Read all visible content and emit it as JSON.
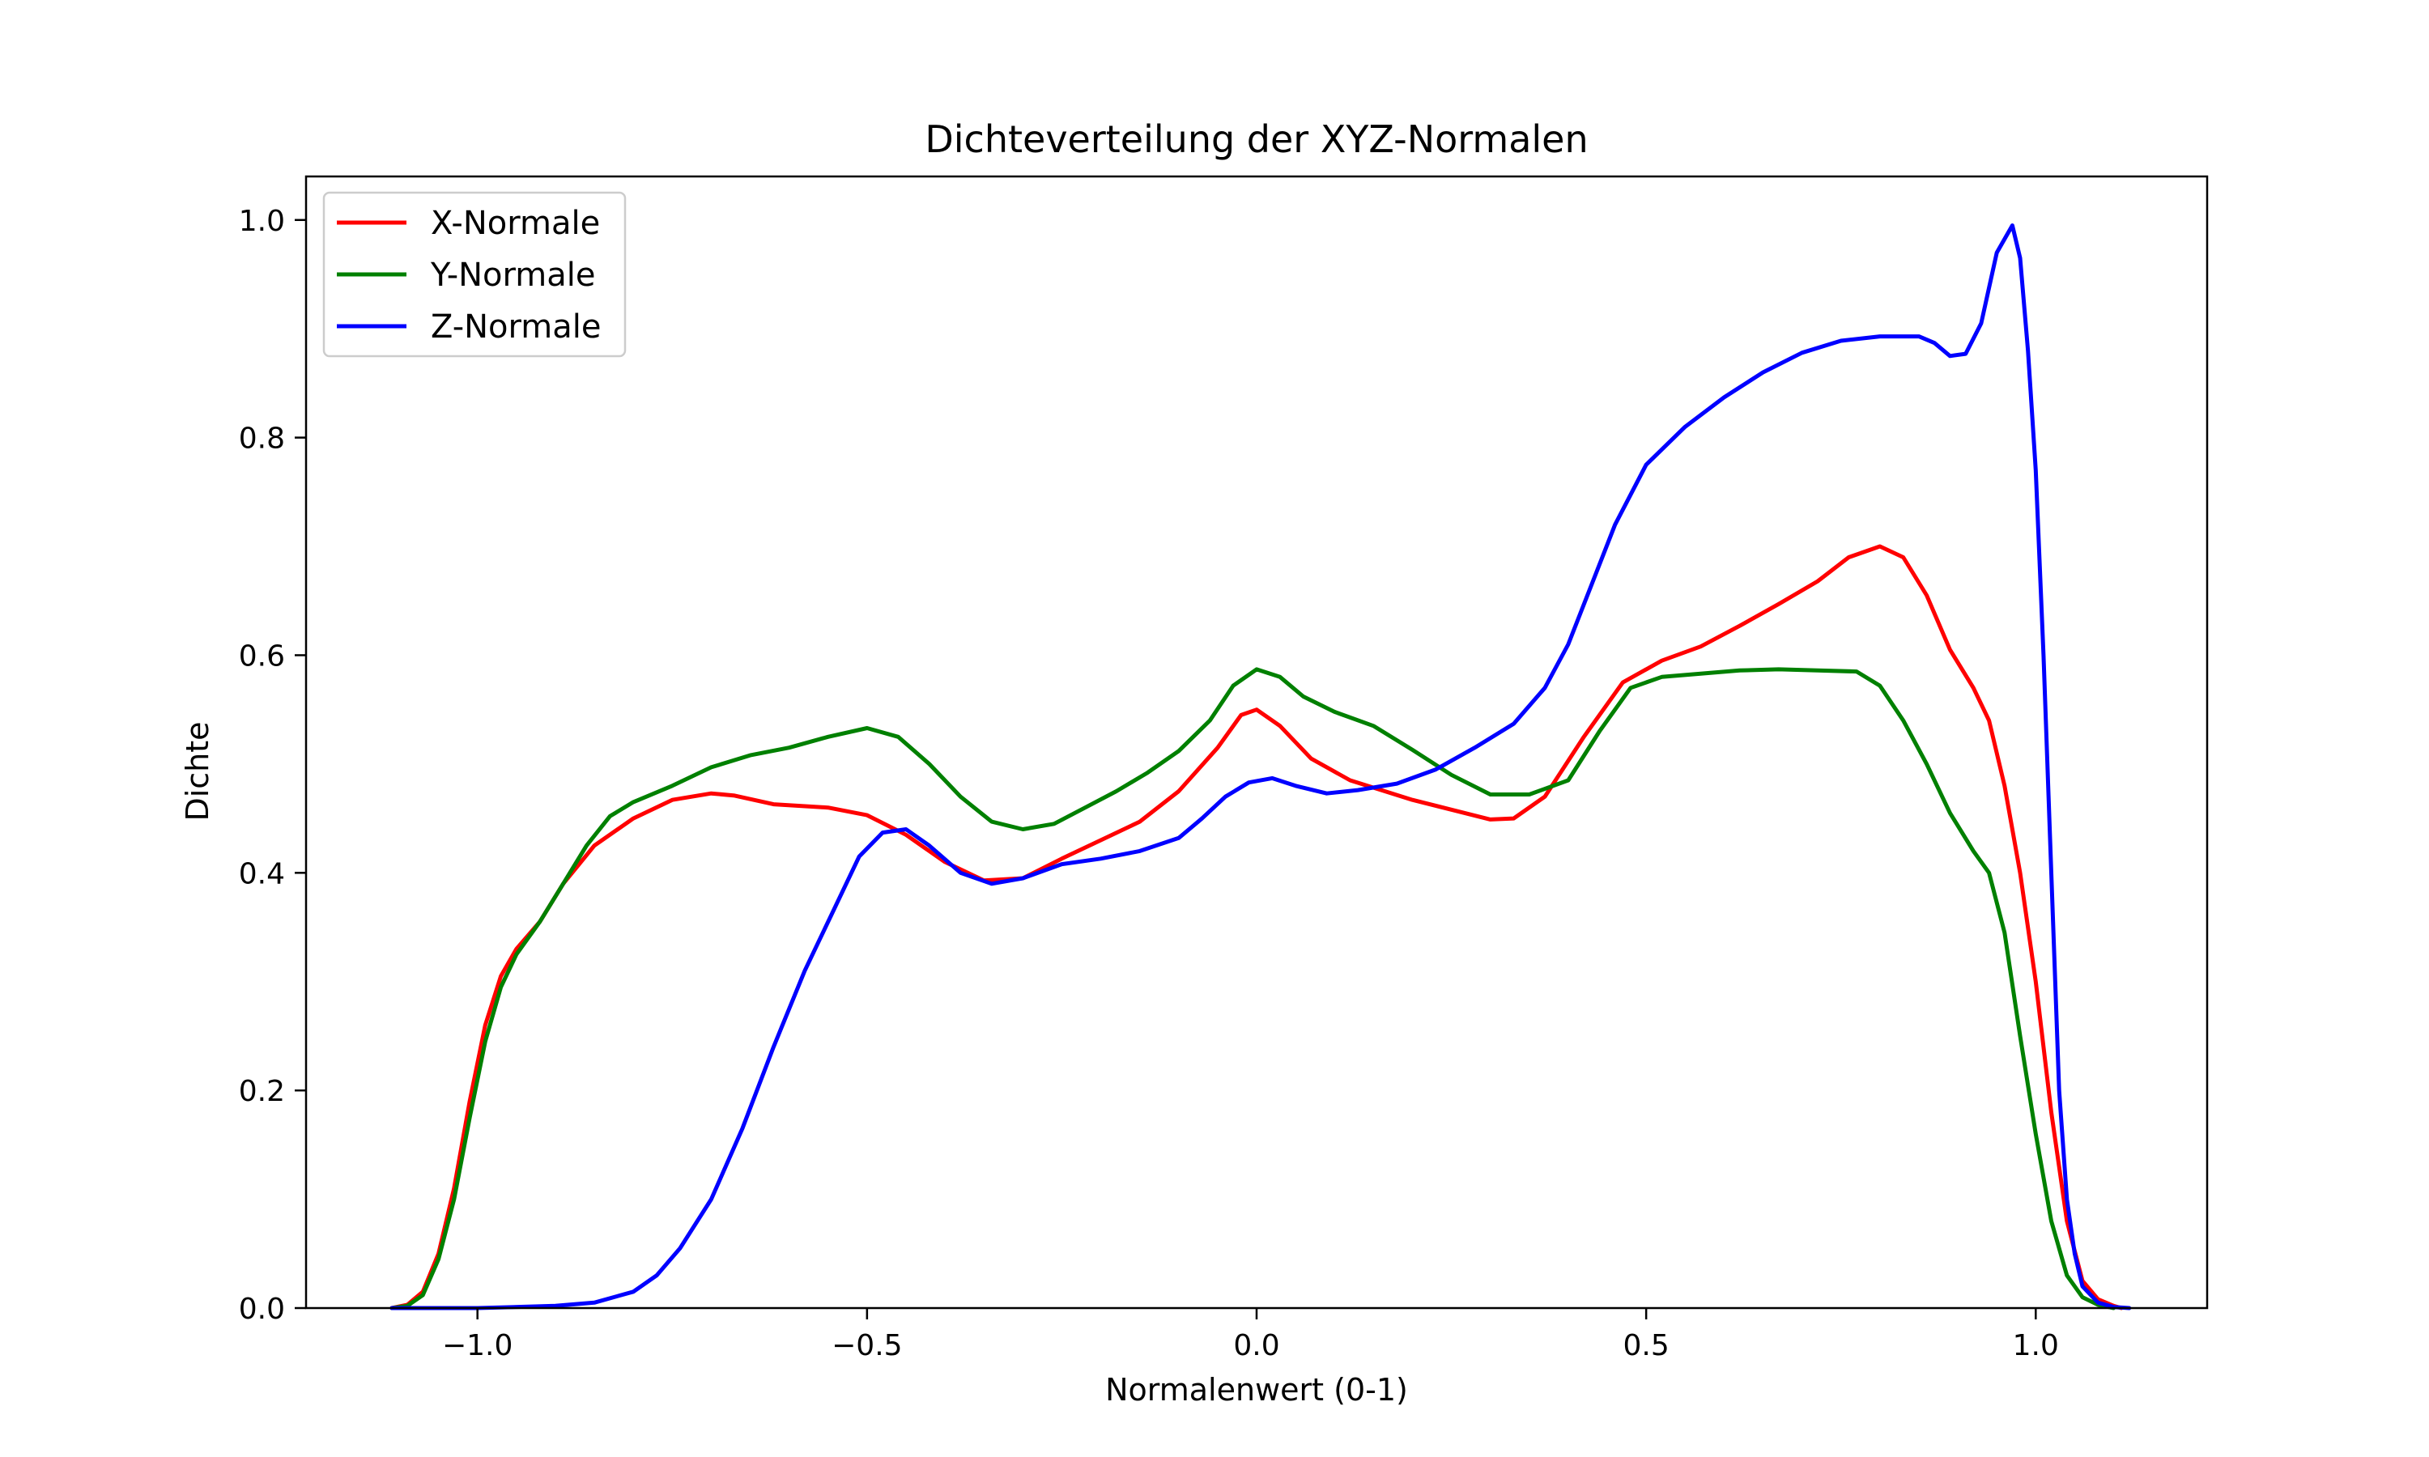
{
  "chart_data": {
    "type": "line",
    "title": "Dichteverteilung der XYZ-Normalen",
    "xlabel": "Normalenwert (0-1)",
    "ylabel": "Dichte",
    "xlim": [
      -1.22,
      1.22
    ],
    "ylim": [
      0,
      1.04
    ],
    "xticks": [
      -1.0,
      -0.5,
      0.0,
      0.5,
      1.0
    ],
    "xtick_labels": [
      "−1.0",
      "−0.5",
      "0.0",
      "0.5",
      "1.0"
    ],
    "yticks": [
      0.0,
      0.2,
      0.4,
      0.6,
      0.8,
      1.0
    ],
    "ytick_labels": [
      "0.0",
      "0.2",
      "0.4",
      "0.6",
      "0.8",
      "1.0"
    ],
    "grid": false,
    "legend_position": "top-left",
    "series": [
      {
        "name": "X-Normale",
        "color": "#ff0000",
        "points": [
          [
            -1.11,
            0.0
          ],
          [
            -1.09,
            0.003
          ],
          [
            -1.07,
            0.015
          ],
          [
            -1.05,
            0.05
          ],
          [
            -1.03,
            0.11
          ],
          [
            -1.01,
            0.19
          ],
          [
            -0.99,
            0.26
          ],
          [
            -0.97,
            0.305
          ],
          [
            -0.95,
            0.33
          ],
          [
            -0.92,
            0.355
          ],
          [
            -0.89,
            0.39
          ],
          [
            -0.85,
            0.425
          ],
          [
            -0.8,
            0.45
          ],
          [
            -0.75,
            0.467
          ],
          [
            -0.7,
            0.473
          ],
          [
            -0.67,
            0.471
          ],
          [
            -0.62,
            0.463
          ],
          [
            -0.55,
            0.46
          ],
          [
            -0.5,
            0.453
          ],
          [
            -0.45,
            0.435
          ],
          [
            -0.4,
            0.41
          ],
          [
            -0.35,
            0.393
          ],
          [
            -0.3,
            0.395
          ],
          [
            -0.25,
            0.413
          ],
          [
            -0.2,
            0.43
          ],
          [
            -0.15,
            0.447
          ],
          [
            -0.1,
            0.475
          ],
          [
            -0.05,
            0.515
          ],
          [
            -0.02,
            0.545
          ],
          [
            0.0,
            0.55
          ],
          [
            0.03,
            0.535
          ],
          [
            0.07,
            0.505
          ],
          [
            0.12,
            0.485
          ],
          [
            0.2,
            0.467
          ],
          [
            0.25,
            0.458
          ],
          [
            0.3,
            0.449
          ],
          [
            0.33,
            0.45
          ],
          [
            0.37,
            0.47
          ],
          [
            0.42,
            0.525
          ],
          [
            0.47,
            0.575
          ],
          [
            0.52,
            0.595
          ],
          [
            0.57,
            0.608
          ],
          [
            0.62,
            0.627
          ],
          [
            0.67,
            0.647
          ],
          [
            0.72,
            0.668
          ],
          [
            0.76,
            0.69
          ],
          [
            0.8,
            0.7
          ],
          [
            0.83,
            0.69
          ],
          [
            0.86,
            0.655
          ],
          [
            0.89,
            0.605
          ],
          [
            0.92,
            0.57
          ],
          [
            0.94,
            0.54
          ],
          [
            0.96,
            0.48
          ],
          [
            0.98,
            0.4
          ],
          [
            1.0,
            0.3
          ],
          [
            1.02,
            0.18
          ],
          [
            1.04,
            0.08
          ],
          [
            1.06,
            0.025
          ],
          [
            1.08,
            0.008
          ],
          [
            1.1,
            0.002
          ],
          [
            1.11,
            0.0
          ]
        ]
      },
      {
        "name": "Y-Normale",
        "color": "#008000",
        "points": [
          [
            -1.11,
            0.0
          ],
          [
            -1.09,
            0.002
          ],
          [
            -1.07,
            0.012
          ],
          [
            -1.05,
            0.045
          ],
          [
            -1.03,
            0.1
          ],
          [
            -1.01,
            0.175
          ],
          [
            -0.99,
            0.245
          ],
          [
            -0.97,
            0.295
          ],
          [
            -0.95,
            0.325
          ],
          [
            -0.92,
            0.355
          ],
          [
            -0.89,
            0.39
          ],
          [
            -0.86,
            0.425
          ],
          [
            -0.83,
            0.452
          ],
          [
            -0.8,
            0.465
          ],
          [
            -0.75,
            0.48
          ],
          [
            -0.7,
            0.497
          ],
          [
            -0.65,
            0.508
          ],
          [
            -0.6,
            0.515
          ],
          [
            -0.55,
            0.525
          ],
          [
            -0.5,
            0.533
          ],
          [
            -0.46,
            0.525
          ],
          [
            -0.42,
            0.5
          ],
          [
            -0.38,
            0.47
          ],
          [
            -0.34,
            0.447
          ],
          [
            -0.3,
            0.44
          ],
          [
            -0.26,
            0.445
          ],
          [
            -0.22,
            0.46
          ],
          [
            -0.18,
            0.475
          ],
          [
            -0.14,
            0.492
          ],
          [
            -0.1,
            0.512
          ],
          [
            -0.06,
            0.54
          ],
          [
            -0.03,
            0.572
          ],
          [
            0.0,
            0.587
          ],
          [
            0.03,
            0.58
          ],
          [
            0.06,
            0.562
          ],
          [
            0.1,
            0.548
          ],
          [
            0.15,
            0.535
          ],
          [
            0.2,
            0.513
          ],
          [
            0.25,
            0.49
          ],
          [
            0.3,
            0.472
          ],
          [
            0.35,
            0.472
          ],
          [
            0.4,
            0.485
          ],
          [
            0.44,
            0.53
          ],
          [
            0.48,
            0.57
          ],
          [
            0.52,
            0.58
          ],
          [
            0.57,
            0.583
          ],
          [
            0.62,
            0.586
          ],
          [
            0.67,
            0.587
          ],
          [
            0.72,
            0.586
          ],
          [
            0.77,
            0.585
          ],
          [
            0.8,
            0.572
          ],
          [
            0.83,
            0.54
          ],
          [
            0.86,
            0.5
          ],
          [
            0.89,
            0.455
          ],
          [
            0.92,
            0.42
          ],
          [
            0.94,
            0.4
          ],
          [
            0.96,
            0.345
          ],
          [
            0.98,
            0.25
          ],
          [
            1.0,
            0.16
          ],
          [
            1.02,
            0.08
          ],
          [
            1.04,
            0.03
          ],
          [
            1.06,
            0.01
          ],
          [
            1.08,
            0.003
          ],
          [
            1.1,
            0.0
          ]
        ]
      },
      {
        "name": "Z-Normale",
        "color": "#0000ff",
        "points": [
          [
            -1.11,
            0.0
          ],
          [
            -1.0,
            0.0
          ],
          [
            -0.9,
            0.002
          ],
          [
            -0.85,
            0.005
          ],
          [
            -0.8,
            0.015
          ],
          [
            -0.77,
            0.03
          ],
          [
            -0.74,
            0.055
          ],
          [
            -0.7,
            0.1
          ],
          [
            -0.66,
            0.165
          ],
          [
            -0.62,
            0.24
          ],
          [
            -0.58,
            0.31
          ],
          [
            -0.54,
            0.37
          ],
          [
            -0.51,
            0.415
          ],
          [
            -0.48,
            0.437
          ],
          [
            -0.45,
            0.44
          ],
          [
            -0.42,
            0.425
          ],
          [
            -0.38,
            0.4
          ],
          [
            -0.34,
            0.39
          ],
          [
            -0.3,
            0.395
          ],
          [
            -0.25,
            0.408
          ],
          [
            -0.2,
            0.413
          ],
          [
            -0.15,
            0.42
          ],
          [
            -0.1,
            0.432
          ],
          [
            -0.07,
            0.45
          ],
          [
            -0.04,
            0.47
          ],
          [
            -0.01,
            0.483
          ],
          [
            0.02,
            0.487
          ],
          [
            0.05,
            0.48
          ],
          [
            0.09,
            0.473
          ],
          [
            0.13,
            0.476
          ],
          [
            0.18,
            0.482
          ],
          [
            0.23,
            0.495
          ],
          [
            0.28,
            0.515
          ],
          [
            0.33,
            0.537
          ],
          [
            0.37,
            0.57
          ],
          [
            0.4,
            0.61
          ],
          [
            0.43,
            0.665
          ],
          [
            0.46,
            0.72
          ],
          [
            0.5,
            0.775
          ],
          [
            0.55,
            0.81
          ],
          [
            0.6,
            0.837
          ],
          [
            0.65,
            0.86
          ],
          [
            0.7,
            0.878
          ],
          [
            0.75,
            0.889
          ],
          [
            0.8,
            0.893
          ],
          [
            0.85,
            0.893
          ],
          [
            0.87,
            0.887
          ],
          [
            0.89,
            0.875
          ],
          [
            0.91,
            0.877
          ],
          [
            0.93,
            0.905
          ],
          [
            0.95,
            0.97
          ],
          [
            0.97,
            0.995
          ],
          [
            0.98,
            0.965
          ],
          [
            0.99,
            0.88
          ],
          [
            1.0,
            0.77
          ],
          [
            1.01,
            0.6
          ],
          [
            1.02,
            0.4
          ],
          [
            1.03,
            0.2
          ],
          [
            1.04,
            0.1
          ],
          [
            1.05,
            0.05
          ],
          [
            1.06,
            0.02
          ],
          [
            1.08,
            0.005
          ],
          [
            1.1,
            0.001
          ],
          [
            1.12,
            0.0
          ]
        ]
      }
    ]
  }
}
